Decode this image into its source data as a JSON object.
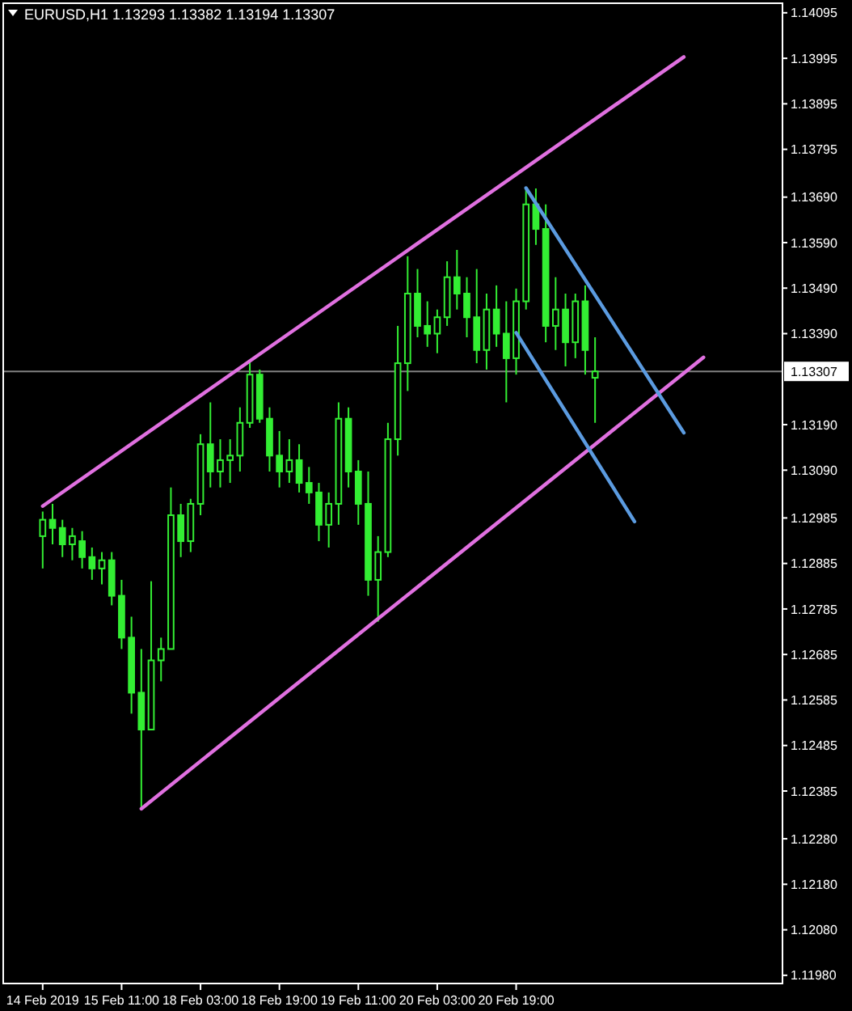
{
  "chart_data": {
    "type": "candlestick",
    "title": "EURUSD,H1  1.13293 1.13382 1.13194 1.13307",
    "categories": [
      "14 Feb 2019",
      null,
      null,
      null,
      null,
      null,
      null,
      null,
      "15 Feb 11:00",
      null,
      null,
      null,
      null,
      null,
      null,
      null,
      "18 Feb 03:00",
      null,
      null,
      null,
      null,
      null,
      null,
      null,
      "18 Feb 19:00",
      null,
      null,
      null,
      null,
      null,
      null,
      null,
      "19 Feb 11:00",
      null,
      null,
      null,
      null,
      null,
      null,
      null,
      "20 Feb 03:00",
      null,
      null,
      null,
      null,
      null,
      null,
      null,
      "20 Feb 19:00",
      null,
      null,
      null,
      null,
      null,
      null,
      null,
      null,
      null,
      null,
      null,
      null,
      null,
      null,
      null,
      null,
      null,
      null,
      null,
      null,
      null,
      null,
      null,
      null,
      null,
      null,
      null
    ],
    "ylim": [
      1.11962,
      1.14116
    ],
    "yticks": [
      1.14095,
      1.13995,
      1.13895,
      1.13795,
      {
        "value": 1.1369,
        "label": "1.13690"
      },
      {
        "value": 1.1359,
        "label": "1.13590"
      },
      {
        "value": 1.1349,
        "label": "1.13490"
      },
      {
        "value": 1.1339,
        "label": "1.13390"
      },
      {
        "value": 1.1319,
        "label": "1.13190"
      },
      {
        "value": 1.1309,
        "label": "1.13090"
      },
      1.12985,
      1.12885,
      1.12785,
      1.12685,
      1.12585,
      1.12485,
      1.12385,
      {
        "value": 1.1228,
        "label": "1.12280"
      },
      {
        "value": 1.1218,
        "label": "1.12180"
      },
      {
        "value": 1.1208,
        "label": "1.12080"
      },
      {
        "value": 1.1198,
        "label": "1.11980"
      }
    ],
    "ref_lines": [
      {
        "axis": "y",
        "value": 1.13307,
        "label": "1.13307",
        "color": "#808080"
      }
    ],
    "series": [
      {
        "color": "#33ee33",
        "ohlc": [
          [
            1.12945,
            1.12999,
            1.12874,
            1.12981
          ],
          [
            1.12981,
            1.13016,
            1.12927,
            1.12963
          ],
          [
            1.12963,
            1.12981,
            1.12899,
            1.12927
          ],
          [
            1.12927,
            1.12963,
            1.12892,
            1.12945
          ],
          [
            1.12934,
            1.12956,
            1.12874,
            1.12899
          ],
          [
            1.12899,
            1.1292,
            1.12849,
            1.12874
          ],
          [
            1.12874,
            1.1291,
            1.12839,
            1.12892
          ],
          [
            1.12892,
            1.1291,
            1.12793,
            1.12814
          ],
          [
            1.12814,
            1.12849,
            1.12697,
            1.12722
          ],
          [
            1.12722,
            1.12768,
            1.12555,
            1.12601
          ],
          [
            1.12601,
            1.12697,
            1.12343,
            1.1252
          ],
          [
            1.1252,
            1.12846,
            1.1252,
            1.12672
          ],
          [
            1.12672,
            1.12722,
            1.12626,
            1.12697
          ],
          [
            1.12697,
            1.13052,
            1.12697,
            1.12991
          ],
          [
            1.12991,
            1.13016,
            1.12899,
            1.12934
          ],
          [
            1.12934,
            1.13027,
            1.1291,
            1.13016
          ],
          [
            1.13016,
            1.13169,
            1.12991,
            1.13147
          ],
          [
            1.13147,
            1.13239,
            1.13052,
            1.13087
          ],
          [
            1.13087,
            1.13158,
            1.13052,
            1.13112
          ],
          [
            1.13112,
            1.13158,
            1.13062,
            1.13122
          ],
          [
            1.13122,
            1.13228,
            1.13087,
            1.13194
          ],
          [
            1.13194,
            1.13329,
            1.13183,
            1.133
          ],
          [
            1.133,
            1.13311,
            1.13194,
            1.13203
          ],
          [
            1.13203,
            1.13228,
            1.13087,
            1.13122
          ],
          [
            1.13122,
            1.13176,
            1.13052,
            1.13087
          ],
          [
            1.13087,
            1.13158,
            1.13062,
            1.13112
          ],
          [
            1.13112,
            1.13147,
            1.13041,
            1.13062
          ],
          [
            1.13062,
            1.13097,
            1.13016,
            1.13041
          ],
          [
            1.13041,
            1.13062,
            1.12934,
            1.1297
          ],
          [
            1.1297,
            1.13041,
            1.1292,
            1.13016
          ],
          [
            1.13016,
            1.13239,
            1.1297,
            1.13203
          ],
          [
            1.13203,
            1.13228,
            1.13052,
            1.13087
          ],
          [
            1.13087,
            1.13112,
            1.1297,
            1.13016
          ],
          [
            1.13016,
            1.13087,
            1.12814,
            1.12849
          ],
          [
            1.12849,
            1.12945,
            1.12757,
            1.1291
          ],
          [
            1.1291,
            1.13194,
            1.12899,
            1.13158
          ],
          [
            1.13158,
            1.13407,
            1.13122,
            1.13325
          ],
          [
            1.13325,
            1.1356,
            1.13264,
            1.13478
          ],
          [
            1.13478,
            1.13532,
            1.13382,
            1.13407
          ],
          [
            1.13407,
            1.13461,
            1.13361,
            1.1339
          ],
          [
            1.1339,
            1.13443,
            1.13347,
            1.13426
          ],
          [
            1.13426,
            1.13549,
            1.13407,
            1.13514
          ],
          [
            1.13514,
            1.13574,
            1.13443,
            1.13478
          ],
          [
            1.13478,
            1.13514,
            1.13382,
            1.13426
          ],
          [
            1.13426,
            1.13532,
            1.13325,
            1.13354
          ],
          [
            1.13354,
            1.13478,
            1.13311,
            1.13443
          ],
          [
            1.13443,
            1.13496,
            1.13361,
            1.1339
          ],
          [
            1.1339,
            1.13461,
            1.13239,
            1.13336
          ],
          [
            1.13336,
            1.13489,
            1.133,
            1.13461
          ],
          [
            1.13461,
            1.13709,
            1.13443,
            1.13674
          ],
          [
            1.13674,
            1.13709,
            1.13585,
            1.1362
          ],
          [
            1.1362,
            1.13674,
            1.13371,
            1.13407
          ],
          [
            1.13407,
            1.13514,
            1.13354,
            1.13443
          ],
          [
            1.13443,
            1.13478,
            1.13318,
            1.13371
          ],
          [
            1.13371,
            1.13478,
            1.13336,
            1.13461
          ],
          [
            1.13461,
            1.13496,
            1.133,
            1.13354
          ],
          [
            1.13293,
            1.13382,
            1.13194,
            1.13307
          ],
          null,
          null,
          null,
          null,
          null,
          null,
          null,
          null,
          null,
          null,
          null,
          null,
          null,
          null,
          null,
          null,
          null,
          null,
          null
        ]
      },
      {
        "type": "line",
        "color": "#e070e0",
        "values": [
          1.13011,
          null,
          null,
          null,
          null,
          null,
          null,
          null,
          null,
          null,
          null,
          null,
          null,
          null,
          null,
          null,
          null,
          null,
          null,
          null,
          null,
          null,
          null,
          null,
          null,
          null,
          null,
          null,
          null,
          null,
          null,
          null,
          null,
          null,
          null,
          null,
          null,
          null,
          null,
          null,
          null,
          null,
          null,
          null,
          null,
          null,
          null,
          null,
          null,
          null,
          null,
          null,
          null,
          null,
          null,
          null,
          null,
          null,
          null,
          null,
          null,
          null,
          null,
          null,
          null,
          1.13998,
          null,
          null,
          null,
          null,
          null,
          null,
          null,
          null,
          null,
          null
        ]
      },
      {
        "type": "line",
        "color": "#e070e0",
        "values": [
          null,
          null,
          null,
          null,
          null,
          null,
          null,
          null,
          null,
          null,
          1.12346,
          null,
          null,
          null,
          null,
          null,
          null,
          null,
          null,
          null,
          null,
          null,
          null,
          null,
          null,
          null,
          null,
          null,
          null,
          null,
          null,
          null,
          null,
          null,
          null,
          null,
          null,
          null,
          null,
          null,
          null,
          null,
          null,
          null,
          null,
          null,
          null,
          null,
          null,
          null,
          null,
          null,
          null,
          null,
          null,
          null,
          null,
          null,
          null,
          null,
          null,
          null,
          null,
          null,
          null,
          null,
          null,
          1.13338,
          null,
          null,
          null,
          null,
          null,
          null,
          null,
          null
        ]
      },
      {
        "type": "line",
        "color": "#5b9be0",
        "values": [
          null,
          null,
          null,
          null,
          null,
          null,
          null,
          null,
          null,
          null,
          null,
          null,
          null,
          null,
          null,
          null,
          null,
          null,
          null,
          null,
          null,
          null,
          null,
          null,
          null,
          null,
          null,
          null,
          null,
          null,
          null,
          null,
          null,
          null,
          null,
          null,
          null,
          null,
          null,
          null,
          null,
          null,
          null,
          null,
          null,
          null,
          null,
          null,
          null,
          1.1371,
          null,
          null,
          null,
          null,
          null,
          null,
          null,
          null,
          null,
          null,
          null,
          null,
          null,
          null,
          null,
          1.13172,
          null,
          null,
          null,
          null,
          null,
          null,
          null,
          null,
          null,
          null
        ]
      },
      {
        "type": "line",
        "color": "#5b9be0",
        "values": [
          null,
          null,
          null,
          null,
          null,
          null,
          null,
          null,
          null,
          null,
          null,
          null,
          null,
          null,
          null,
          null,
          null,
          null,
          null,
          null,
          null,
          null,
          null,
          null,
          null,
          null,
          null,
          null,
          null,
          null,
          null,
          null,
          null,
          null,
          null,
          null,
          null,
          null,
          null,
          null,
          null,
          null,
          null,
          null,
          null,
          null,
          null,
          null,
          1.13392,
          null,
          null,
          null,
          null,
          null,
          null,
          null,
          null,
          null,
          null,
          null,
          1.12977,
          null,
          null,
          null,
          null,
          null,
          null,
          null,
          null,
          null,
          null,
          null,
          null,
          null,
          null,
          null
        ]
      }
    ]
  }
}
